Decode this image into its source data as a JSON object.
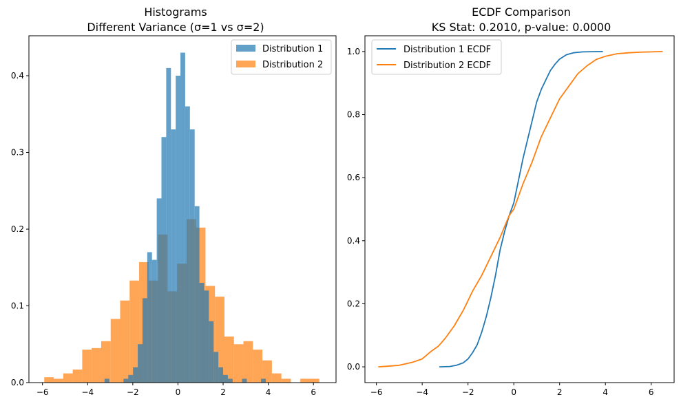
{
  "chart_data": [
    {
      "type": "histogram",
      "title_line1": "Histograms",
      "title_line2": "Different Variance (σ=1 vs σ=2)",
      "xlim": [
        -6.6,
        7.0
      ],
      "ylim": [
        0,
        0.452
      ],
      "xticks": [
        -6,
        -4,
        -2,
        0,
        2,
        4,
        6
      ],
      "yticks": [
        0.0,
        0.1,
        0.2,
        0.3,
        0.4
      ],
      "legend_position": "top-right",
      "series": [
        {
          "name": "Distribution 1",
          "color": "#1f77b4",
          "opacity": 0.7,
          "bin_edges": [
            -3.25,
            -3.04,
            -2.83,
            -2.62,
            -2.41,
            -2.2,
            -1.99,
            -1.78,
            -1.57,
            -1.36,
            -1.15,
            -0.94,
            -0.73,
            -0.52,
            -0.31,
            -0.1,
            0.11,
            0.32,
            0.53,
            0.74,
            0.95,
            1.16,
            1.37,
            1.58,
            1.79,
            2.0,
            2.21,
            2.42,
            2.63,
            2.84,
            3.05,
            3.26,
            3.47,
            3.68,
            3.89
          ],
          "values": [
            0.005,
            0.0,
            0.0,
            0.0,
            0.005,
            0.01,
            0.02,
            0.05,
            0.11,
            0.17,
            0.16,
            0.24,
            0.32,
            0.41,
            0.33,
            0.4,
            0.43,
            0.36,
            0.33,
            0.23,
            0.13,
            0.12,
            0.08,
            0.04,
            0.02,
            0.01,
            0.005,
            0.0,
            0.0,
            0.005,
            0.0,
            0.0,
            0.0,
            0.005
          ]
        },
        {
          "name": "Distribution 2",
          "color": "#ff7f0e",
          "opacity": 0.7,
          "bin_edges": [
            -5.92,
            -5.5,
            -5.08,
            -4.66,
            -4.24,
            -3.82,
            -3.4,
            -2.98,
            -2.56,
            -2.14,
            -1.72,
            -1.3,
            -0.88,
            -0.46,
            -0.04,
            0.38,
            0.8,
            1.22,
            1.64,
            2.06,
            2.48,
            2.9,
            3.32,
            3.74,
            4.16,
            4.58,
            5.0,
            5.42,
            5.84,
            6.26,
            6.68
          ],
          "values": [
            0.007,
            0.005,
            0.012,
            0.017,
            0.043,
            0.045,
            0.054,
            0.083,
            0.107,
            0.133,
            0.157,
            0.133,
            0.193,
            0.119,
            0.155,
            0.213,
            0.202,
            0.126,
            0.112,
            0.06,
            0.05,
            0.054,
            0.043,
            0.029,
            0.012,
            0.005,
            0.0,
            0.005,
            0.005,
            0.0
          ]
        }
      ]
    },
    {
      "type": "line",
      "title_line1": "ECDF Comparison",
      "title_line2": "KS Stat: 0.2010, p-value: 0.0000",
      "xlim": [
        -6.5,
        7.0
      ],
      "ylim": [
        -0.05,
        1.05
      ],
      "xticks": [
        -6,
        -4,
        -2,
        0,
        2,
        4,
        6
      ],
      "yticks": [
        0.0,
        0.2,
        0.4,
        0.6,
        0.8,
        1.0
      ],
      "legend_position": "top-left",
      "series": [
        {
          "name": "Distribution 1 ECDF",
          "color": "#1f77b4",
          "x": [
            -3.25,
            -2.8,
            -2.5,
            -2.2,
            -2.0,
            -1.8,
            -1.6,
            -1.4,
            -1.2,
            -1.0,
            -0.8,
            -0.6,
            -0.4,
            -0.2,
            0.0,
            0.2,
            0.4,
            0.6,
            0.8,
            1.0,
            1.2,
            1.4,
            1.6,
            1.8,
            2.0,
            2.3,
            2.6,
            3.0,
            3.89
          ],
          "y": [
            0.0,
            0.001,
            0.005,
            0.013,
            0.025,
            0.045,
            0.07,
            0.11,
            0.16,
            0.22,
            0.29,
            0.37,
            0.43,
            0.48,
            0.52,
            0.59,
            0.66,
            0.72,
            0.78,
            0.84,
            0.88,
            0.91,
            0.94,
            0.96,
            0.976,
            0.99,
            0.996,
            0.999,
            1.0
          ]
        },
        {
          "name": "Distribution 2 ECDF",
          "color": "#ff7f0e",
          "x": [
            -5.92,
            -5.5,
            -5.0,
            -4.7,
            -4.4,
            -4.0,
            -3.6,
            -3.3,
            -3.0,
            -2.6,
            -2.2,
            -1.8,
            -1.4,
            -1.0,
            -0.6,
            -0.2,
            0.0,
            0.4,
            0.8,
            1.2,
            1.6,
            2.0,
            2.4,
            2.8,
            3.2,
            3.6,
            4.0,
            4.5,
            5.0,
            5.5,
            6.0,
            6.5
          ],
          "y": [
            0.0,
            0.002,
            0.005,
            0.01,
            0.015,
            0.025,
            0.05,
            0.065,
            0.09,
            0.13,
            0.18,
            0.24,
            0.29,
            0.35,
            0.41,
            0.48,
            0.5,
            0.58,
            0.65,
            0.73,
            0.79,
            0.85,
            0.89,
            0.93,
            0.955,
            0.975,
            0.985,
            0.993,
            0.996,
            0.998,
            0.999,
            1.0
          ]
        }
      ]
    }
  ]
}
